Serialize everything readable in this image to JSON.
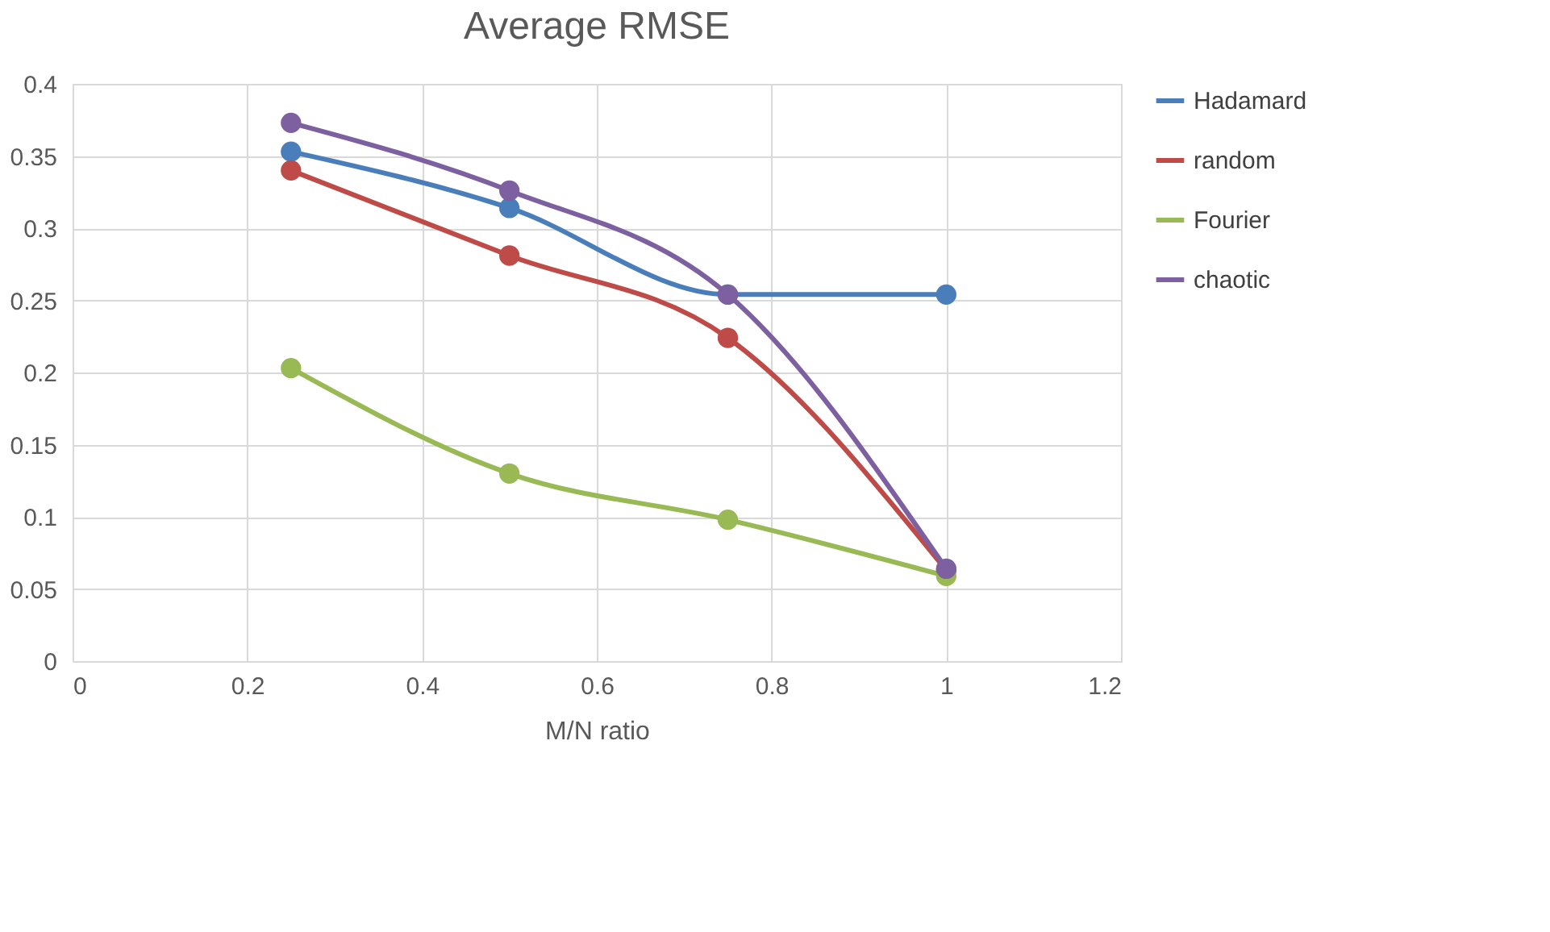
{
  "chart_data": {
    "type": "line",
    "title": "Average RMSE",
    "xlabel": "M/N ratio",
    "x": [
      0.25,
      0.5,
      0.75,
      1
    ],
    "series": [
      {
        "name": "Hadamard",
        "color": "#4a7ebb",
        "values": [
          0.353,
          0.314,
          0.254,
          0.254
        ]
      },
      {
        "name": "random",
        "color": "#be4b48",
        "values": [
          0.34,
          0.281,
          0.224,
          0.063
        ]
      },
      {
        "name": "Fourier",
        "color": "#98b954",
        "values": [
          0.203,
          0.13,
          0.098,
          0.059
        ]
      },
      {
        "name": "chaotic",
        "color": "#7d60a0",
        "values": [
          0.373,
          0.326,
          0.254,
          0.064
        ]
      }
    ],
    "xlim": [
      0,
      1.2
    ],
    "xticks": [
      0,
      0.2,
      0.4,
      0.6,
      0.8,
      1,
      1.2
    ],
    "ylim": [
      0,
      0.4
    ],
    "yticks": [
      0,
      0.05,
      0.1,
      0.15,
      0.2,
      0.25,
      0.3,
      0.35,
      0.4
    ],
    "grid": true,
    "legend": "right",
    "marker": "circle",
    "line_style": "solid"
  }
}
